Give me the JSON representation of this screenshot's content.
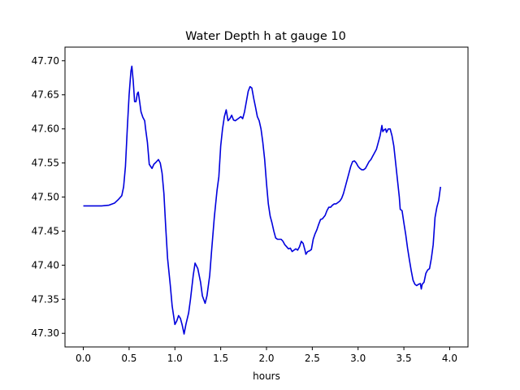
{
  "chart_data": {
    "type": "line",
    "title": "Water Depth h at gauge 10",
    "xlabel": "hours",
    "ylabel": "",
    "xlim": [
      -0.2,
      4.2
    ],
    "ylim": [
      47.28,
      47.72
    ],
    "xticks": [
      0.0,
      0.5,
      1.0,
      1.5,
      2.0,
      2.5,
      3.0,
      3.5,
      4.0
    ],
    "xtick_labels": [
      "0.0",
      "0.5",
      "1.0",
      "1.5",
      "2.0",
      "2.5",
      "3.0",
      "3.5",
      "4.0"
    ],
    "yticks": [
      47.3,
      47.35,
      47.4,
      47.45,
      47.5,
      47.55,
      47.6,
      47.65,
      47.7
    ],
    "ytick_labels": [
      "47.30",
      "47.35",
      "47.40",
      "47.45",
      "47.50",
      "47.55",
      "47.60",
      "47.65",
      "47.70"
    ],
    "grid": false,
    "series": [
      {
        "color": "#0000dd",
        "points": [
          [
            0.0,
            47.487
          ],
          [
            0.1,
            47.487
          ],
          [
            0.2,
            47.487
          ],
          [
            0.28,
            47.488
          ],
          [
            0.34,
            47.491
          ],
          [
            0.38,
            47.496
          ],
          [
            0.42,
            47.502
          ],
          [
            0.44,
            47.515
          ],
          [
            0.46,
            47.545
          ],
          [
            0.48,
            47.6
          ],
          [
            0.5,
            47.65
          ],
          [
            0.52,
            47.685
          ],
          [
            0.53,
            47.692
          ],
          [
            0.545,
            47.67
          ],
          [
            0.56,
            47.64
          ],
          [
            0.575,
            47.64
          ],
          [
            0.59,
            47.652
          ],
          [
            0.6,
            47.654
          ],
          [
            0.615,
            47.64
          ],
          [
            0.63,
            47.625
          ],
          [
            0.65,
            47.617
          ],
          [
            0.67,
            47.612
          ],
          [
            0.68,
            47.6
          ],
          [
            0.7,
            47.58
          ],
          [
            0.72,
            47.548
          ],
          [
            0.75,
            47.542
          ],
          [
            0.77,
            47.548
          ],
          [
            0.8,
            47.552
          ],
          [
            0.82,
            47.555
          ],
          [
            0.84,
            47.55
          ],
          [
            0.86,
            47.535
          ],
          [
            0.88,
            47.505
          ],
          [
            0.9,
            47.455
          ],
          [
            0.92,
            47.41
          ],
          [
            0.95,
            47.37
          ],
          [
            0.97,
            47.34
          ],
          [
            1.0,
            47.313
          ],
          [
            1.02,
            47.318
          ],
          [
            1.04,
            47.326
          ],
          [
            1.06,
            47.322
          ],
          [
            1.08,
            47.312
          ],
          [
            1.1,
            47.299
          ],
          [
            1.12,
            47.313
          ],
          [
            1.15,
            47.33
          ],
          [
            1.17,
            47.35
          ],
          [
            1.2,
            47.385
          ],
          [
            1.22,
            47.403
          ],
          [
            1.25,
            47.395
          ],
          [
            1.28,
            47.375
          ],
          [
            1.3,
            47.355
          ],
          [
            1.33,
            47.344
          ],
          [
            1.35,
            47.355
          ],
          [
            1.38,
            47.385
          ],
          [
            1.4,
            47.42
          ],
          [
            1.43,
            47.47
          ],
          [
            1.46,
            47.51
          ],
          [
            1.48,
            47.53
          ],
          [
            1.5,
            47.575
          ],
          [
            1.52,
            47.6
          ],
          [
            1.54,
            47.618
          ],
          [
            1.56,
            47.628
          ],
          [
            1.58,
            47.612
          ],
          [
            1.6,
            47.615
          ],
          [
            1.62,
            47.62
          ],
          [
            1.64,
            47.613
          ],
          [
            1.66,
            47.612
          ],
          [
            1.68,
            47.614
          ],
          [
            1.7,
            47.616
          ],
          [
            1.72,
            47.618
          ],
          [
            1.74,
            47.615
          ],
          [
            1.76,
            47.625
          ],
          [
            1.78,
            47.64
          ],
          [
            1.8,
            47.655
          ],
          [
            1.82,
            47.662
          ],
          [
            1.84,
            47.66
          ],
          [
            1.86,
            47.645
          ],
          [
            1.88,
            47.632
          ],
          [
            1.9,
            47.618
          ],
          [
            1.92,
            47.612
          ],
          [
            1.94,
            47.6
          ],
          [
            1.96,
            47.58
          ],
          [
            1.98,
            47.555
          ],
          [
            2.0,
            47.52
          ],
          [
            2.02,
            47.49
          ],
          [
            2.04,
            47.472
          ],
          [
            2.06,
            47.462
          ],
          [
            2.08,
            47.45
          ],
          [
            2.1,
            47.44
          ],
          [
            2.12,
            47.438
          ],
          [
            2.16,
            47.438
          ],
          [
            2.18,
            47.435
          ],
          [
            2.2,
            47.43
          ],
          [
            2.22,
            47.427
          ],
          [
            2.24,
            47.424
          ],
          [
            2.26,
            47.425
          ],
          [
            2.28,
            47.42
          ],
          [
            2.3,
            47.422
          ],
          [
            2.32,
            47.424
          ],
          [
            2.34,
            47.422
          ],
          [
            2.36,
            47.427
          ],
          [
            2.38,
            47.435
          ],
          [
            2.4,
            47.432
          ],
          [
            2.42,
            47.422
          ],
          [
            2.43,
            47.416
          ],
          [
            2.45,
            47.42
          ],
          [
            2.47,
            47.421
          ],
          [
            2.49,
            47.423
          ],
          [
            2.51,
            47.438
          ],
          [
            2.53,
            47.446
          ],
          [
            2.55,
            47.452
          ],
          [
            2.57,
            47.46
          ],
          [
            2.59,
            47.467
          ],
          [
            2.61,
            47.468
          ],
          [
            2.64,
            47.473
          ],
          [
            2.66,
            47.48
          ],
          [
            2.68,
            47.485
          ],
          [
            2.7,
            47.485
          ],
          [
            2.72,
            47.488
          ],
          [
            2.74,
            47.49
          ],
          [
            2.76,
            47.49
          ],
          [
            2.78,
            47.492
          ],
          [
            2.8,
            47.494
          ],
          [
            2.82,
            47.498
          ],
          [
            2.84,
            47.505
          ],
          [
            2.86,
            47.515
          ],
          [
            2.88,
            47.525
          ],
          [
            2.9,
            47.535
          ],
          [
            2.92,
            47.545
          ],
          [
            2.94,
            47.552
          ],
          [
            2.96,
            47.553
          ],
          [
            2.98,
            47.55
          ],
          [
            3.0,
            47.545
          ],
          [
            3.02,
            47.542
          ],
          [
            3.04,
            47.54
          ],
          [
            3.06,
            47.54
          ],
          [
            3.08,
            47.542
          ],
          [
            3.1,
            47.547
          ],
          [
            3.12,
            47.552
          ],
          [
            3.14,
            47.555
          ],
          [
            3.16,
            47.56
          ],
          [
            3.18,
            47.565
          ],
          [
            3.2,
            47.57
          ],
          [
            3.22,
            47.58
          ],
          [
            3.24,
            47.59
          ],
          [
            3.26,
            47.605
          ],
          [
            3.27,
            47.596
          ],
          [
            3.28,
            47.598
          ],
          [
            3.3,
            47.6
          ],
          [
            3.31,
            47.595
          ],
          [
            3.33,
            47.6
          ],
          [
            3.35,
            47.6
          ],
          [
            3.37,
            47.59
          ],
          [
            3.39,
            47.575
          ],
          [
            3.41,
            47.55
          ],
          [
            3.43,
            47.525
          ],
          [
            3.45,
            47.5
          ],
          [
            3.46,
            47.482
          ],
          [
            3.48,
            47.48
          ],
          [
            3.5,
            47.462
          ],
          [
            3.52,
            47.445
          ],
          [
            3.54,
            47.425
          ],
          [
            3.56,
            47.408
          ],
          [
            3.58,
            47.392
          ],
          [
            3.6,
            47.378
          ],
          [
            3.62,
            47.372
          ],
          [
            3.64,
            47.37
          ],
          [
            3.66,
            47.372
          ],
          [
            3.68,
            47.373
          ],
          [
            3.69,
            47.365
          ],
          [
            3.7,
            47.372
          ],
          [
            3.72,
            47.375
          ],
          [
            3.74,
            47.388
          ],
          [
            3.76,
            47.393
          ],
          [
            3.78,
            47.395
          ],
          [
            3.8,
            47.41
          ],
          [
            3.82,
            47.43
          ],
          [
            3.84,
            47.47
          ],
          [
            3.86,
            47.485
          ],
          [
            3.88,
            47.495
          ],
          [
            3.9,
            47.515
          ]
        ]
      }
    ]
  }
}
